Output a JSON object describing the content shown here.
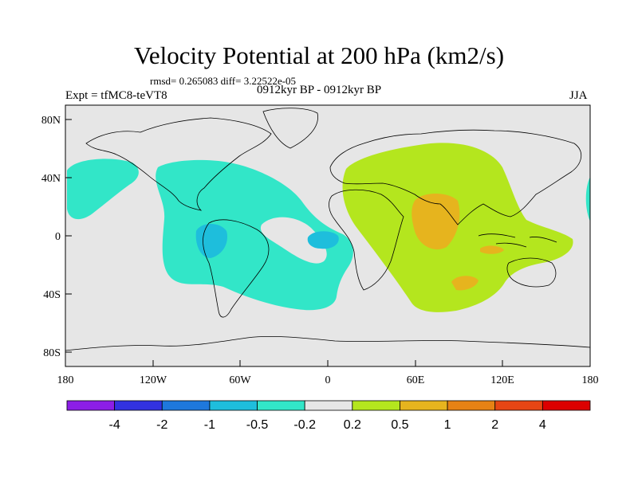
{
  "title": "Velocity Potential at 200 hPa (km2/s)",
  "stats": "rmsd= 0.265083 diff= 3.22522e-05",
  "experiment": "Expt = tfMC8-teVT8",
  "period": "0912kyr BP - 0912kyr BP",
  "season": "JJA",
  "lat_labels": [
    "80N",
    "40N",
    "0",
    "40S",
    "80S"
  ],
  "lon_labels": [
    "180",
    "120W",
    "60W",
    "0",
    "60E",
    "120E",
    "180"
  ],
  "colorbar": {
    "colors": [
      "#8c1ee6",
      "#3232e0",
      "#1e78dc",
      "#1ebedc",
      "#32e6c8",
      "#e6e6e6",
      "#b4e61e",
      "#e6b41e",
      "#e68214",
      "#e64614",
      "#dc0000"
    ],
    "labels": [
      "-4",
      "-2",
      "-1",
      "-0.5",
      "-0.2",
      "0.2",
      "0.5",
      "1",
      "2",
      "4"
    ]
  },
  "colors": {
    "background": "#e6e6e6",
    "negative_fill": "#32e6c8",
    "negative_core": "#1ebedc",
    "positive_fill": "#b4e61e",
    "positive_core": "#e6b41e"
  }
}
